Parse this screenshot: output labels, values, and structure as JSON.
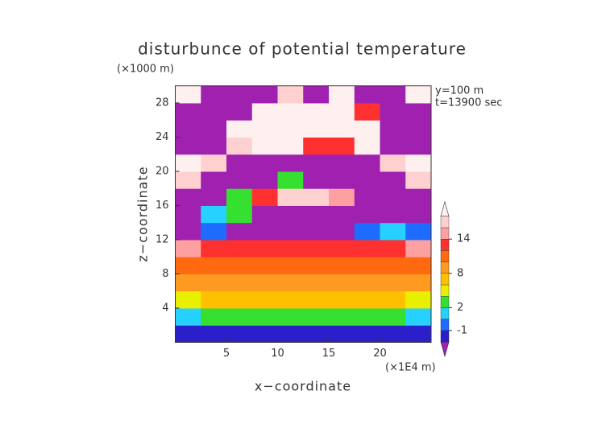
{
  "chart_data": {
    "type": "contour",
    "title": "disturbunce of potential temperature",
    "y_unit": "(×1000 m)",
    "x_unit": "(×1E4 m)",
    "annotations": [
      "y=100 m",
      "t=13900 sec"
    ],
    "x_label": "x−coordinate",
    "y_label": "z−coordinate",
    "xlim": [
      0,
      25
    ],
    "ylim": [
      0,
      30
    ],
    "xticks": [
      5,
      10,
      15,
      20
    ],
    "yticks": [
      4,
      8,
      12,
      16,
      20,
      24,
      28
    ],
    "x": [
      1.25,
      3.75,
      6.25,
      8.75,
      11.25,
      13.75,
      16.25,
      18.75,
      21.25,
      23.75
    ],
    "y": [
      1,
      3,
      5,
      7,
      9,
      11,
      13,
      15,
      17,
      19,
      21,
      23,
      25,
      27,
      29
    ],
    "values": [
      [
        -1.5,
        -1.5,
        -1.5,
        -2,
        -2,
        -1.5,
        -1.5,
        -2,
        -1.5,
        -1.5
      ],
      [
        1,
        3,
        3,
        3,
        3,
        3,
        3,
        3,
        3,
        1
      ],
      [
        5,
        7,
        7,
        7,
        7,
        7,
        7,
        7,
        7,
        5
      ],
      [
        9,
        9,
        9,
        9,
        9,
        9,
        9,
        9,
        9,
        9
      ],
      [
        11,
        11,
        11,
        11,
        11,
        11,
        11,
        11,
        11,
        11
      ],
      [
        15,
        13,
        13,
        13,
        13,
        13,
        13,
        13,
        13,
        15
      ],
      [
        -3,
        -1,
        -3,
        -3,
        -3,
        -3,
        -3,
        -1,
        1,
        -1
      ],
      [
        -3,
        1,
        3,
        -3,
        -3,
        -3,
        -3,
        -3,
        -3,
        -3
      ],
      [
        -3,
        -3,
        3,
        13,
        17,
        17,
        15,
        -3,
        -3,
        -3
      ],
      [
        17,
        -3,
        -3,
        -3,
        3,
        -3,
        -3,
        -3,
        -3,
        17
      ],
      [
        19,
        17,
        -3,
        -3,
        -3,
        -3,
        -3,
        -3,
        17,
        19
      ],
      [
        -3,
        -3,
        17,
        19,
        19,
        13,
        13,
        19,
        -3,
        -3
      ],
      [
        -3,
        -3,
        19,
        19,
        19,
        19,
        19,
        19,
        -3,
        -3
      ],
      [
        -3,
        -3,
        -3,
        19,
        19,
        19,
        19,
        13,
        -3,
        -3
      ],
      [
        19,
        -3,
        -3,
        -3,
        17,
        -3,
        19,
        -3,
        -3,
        19
      ]
    ],
    "levels": [
      -2,
      -1,
      0,
      2,
      4,
      6,
      8,
      10,
      12,
      14,
      16,
      18
    ],
    "colors": [
      "#a020b0",
      "#2a1fc8",
      "#1e6cff",
      "#26d0ff",
      "#36e030",
      "#e8f000",
      "#ffc000",
      "#ff9a20",
      "#ff6a10",
      "#ff3030",
      "#ffa0a0",
      "#ffd0d0",
      "#fff0f0"
    ],
    "colorbar_ticks": [
      14,
      8,
      2,
      -1
    ]
  }
}
